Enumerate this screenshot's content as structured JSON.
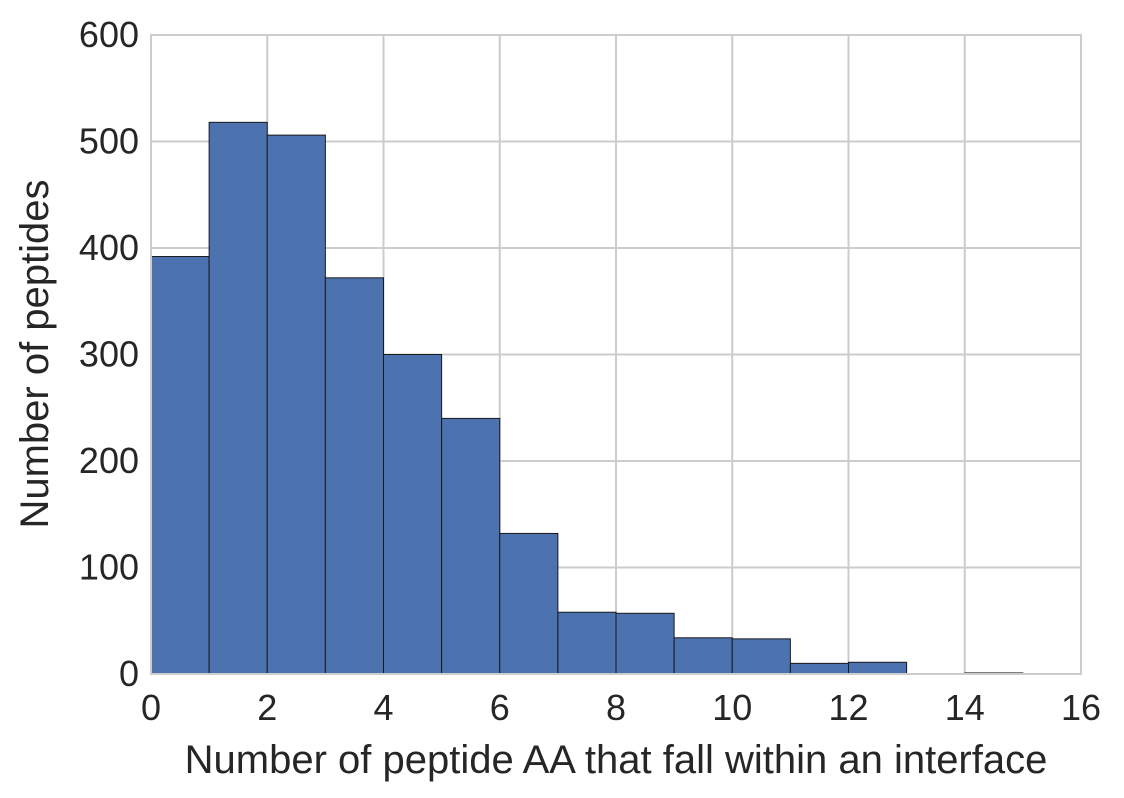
{
  "chart_data": {
    "type": "bar",
    "title": "",
    "xlabel": "Number of peptide AA that fall within an interface",
    "ylabel": "Number of peptides",
    "xlim": [
      0,
      16
    ],
    "ylim": [
      0,
      600
    ],
    "x_ticks": [
      0,
      2,
      4,
      6,
      8,
      10,
      12,
      14,
      16
    ],
    "y_ticks": [
      0,
      100,
      200,
      300,
      400,
      500,
      600
    ],
    "bin_edges": [
      0,
      1,
      2,
      3,
      4,
      5,
      6,
      7,
      8,
      9,
      10,
      11,
      12,
      13,
      14,
      15
    ],
    "values": [
      392,
      518,
      506,
      372,
      300,
      240,
      132,
      58,
      57,
      34,
      33,
      10,
      11,
      0,
      1
    ],
    "grid": true,
    "bar_color": "#4c72b0",
    "grid_color": "#cccccc"
  }
}
